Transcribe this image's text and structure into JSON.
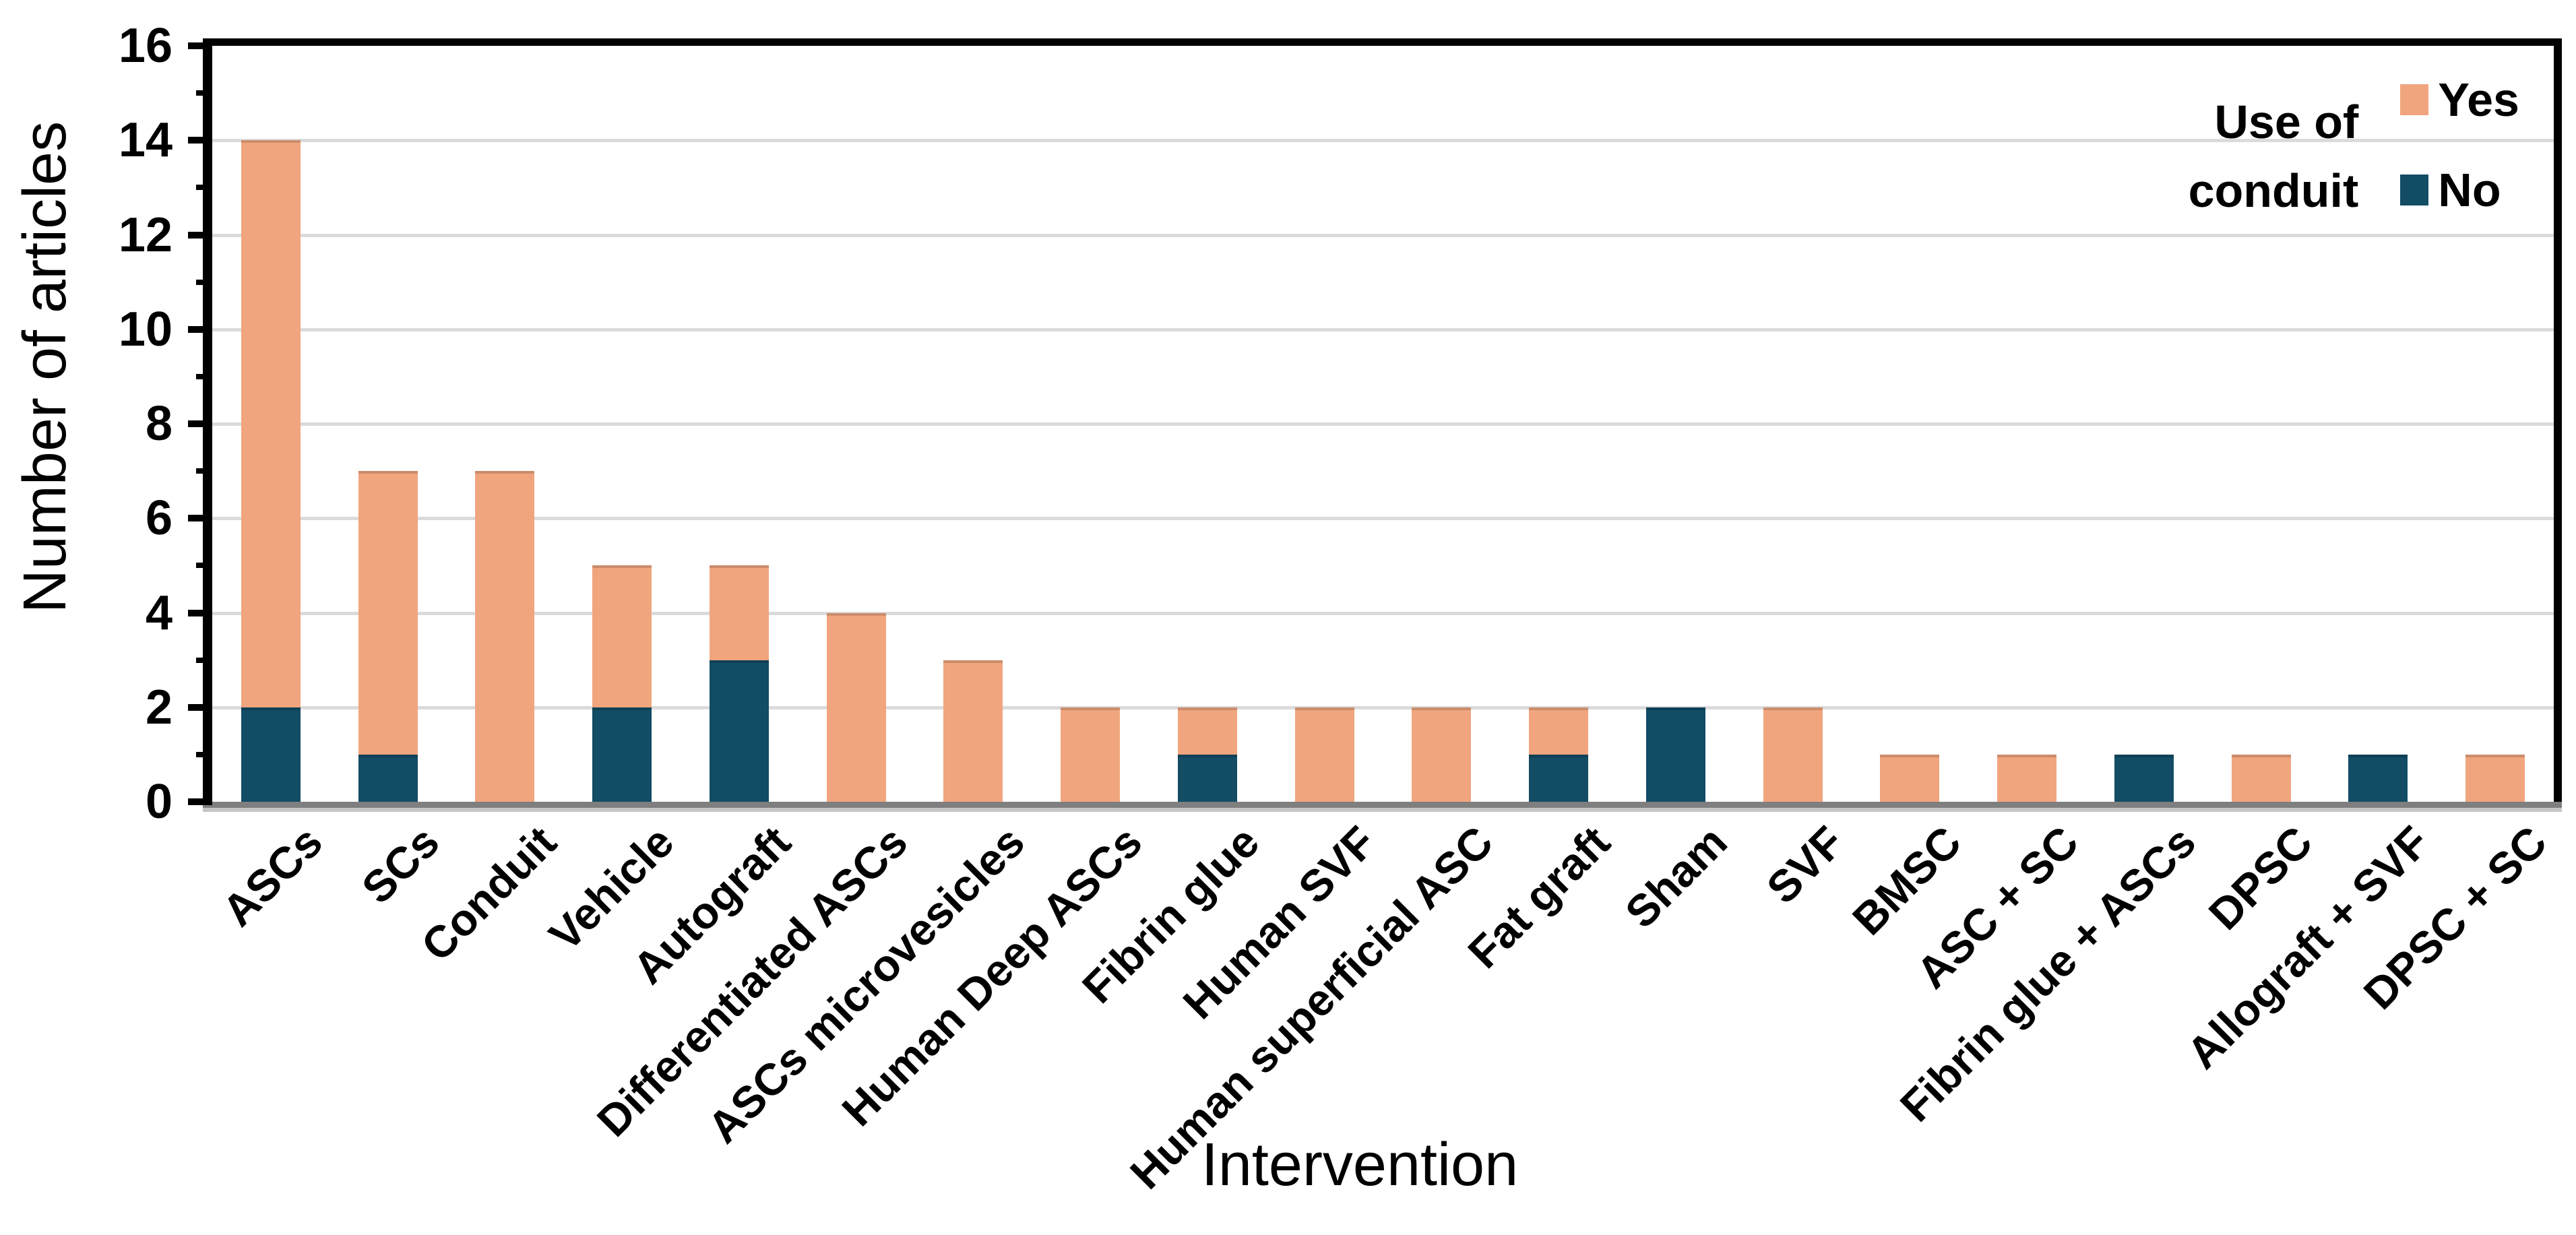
{
  "chart_data": {
    "type": "bar",
    "stacked": true,
    "title": "",
    "xlabel": "Intervention",
    "ylabel": "Number of articles",
    "ylim": [
      0,
      16
    ],
    "yticks": [
      0,
      2,
      4,
      6,
      8,
      10,
      12,
      14,
      16
    ],
    "grid": true,
    "grid_step": 2,
    "gridline_color": "#DBDBDB",
    "axis_color": "#000000",
    "baseline_color": "#7F7F7F",
    "legend_title": "Use of conduit",
    "legend_title_lines": [
      "Use of",
      "conduit"
    ],
    "legend_position": "top-right-inside",
    "stack_order_bottom_to_top": [
      "No",
      "Yes"
    ],
    "categories": [
      "ASCs",
      "SCs",
      "Conduit",
      "Vehicle",
      "Autograft",
      "Differentiated ASCs",
      "ASCs microvesicles",
      "Human Deep ASCs",
      "Fibrin glue",
      "Human SVF",
      "Human superficial ASC",
      "Fat graft",
      "Sham",
      "SVF",
      "BMSC",
      "ASC + SC",
      "Fibrin glue + ASCs",
      "DPSC",
      "Allograft + SVF",
      "DPSC + SC"
    ],
    "series": [
      {
        "name": "Yes",
        "color": "#F0A57E",
        "values": [
          12,
          6,
          7,
          3,
          2,
          4,
          3,
          2,
          1,
          2,
          2,
          1,
          0,
          2,
          1,
          1,
          0,
          1,
          0,
          1
        ]
      },
      {
        "name": "No",
        "color": "#124C65",
        "values": [
          2,
          1,
          0,
          2,
          3,
          0,
          0,
          0,
          1,
          0,
          0,
          1,
          2,
          0,
          0,
          0,
          1,
          0,
          1,
          0
        ]
      }
    ],
    "totals": [
      14,
      7,
      7,
      5,
      5,
      4,
      3,
      2,
      2,
      2,
      2,
      2,
      2,
      2,
      1,
      1,
      1,
      1,
      1,
      1
    ]
  }
}
